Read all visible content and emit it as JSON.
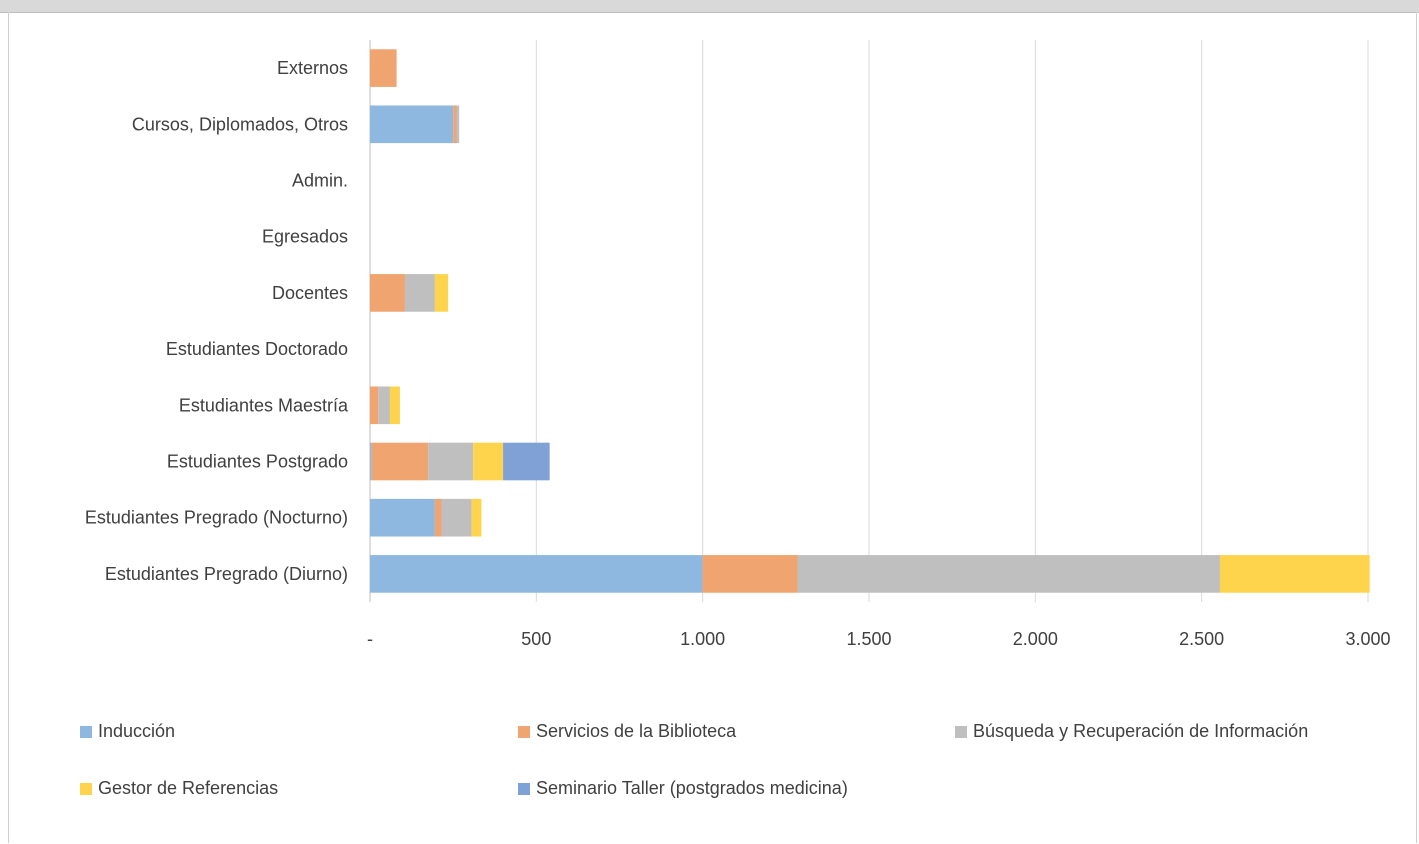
{
  "chart_data": {
    "type": "bar",
    "orientation": "horizontal",
    "stacked": true,
    "categories": [
      "Estudiantes Pregrado (Diurno)",
      "Estudiantes Pregrado (Nocturno)",
      "Estudiantes Postgrado",
      "Estudiantes Maestría",
      "Estudiantes Doctorado",
      "Docentes",
      "Egresados",
      "Admin.",
      "Cursos, Diplomados, Otros",
      "Externos"
    ],
    "series": [
      {
        "name": "Inducción",
        "color": "#8fb8e0",
        "values": [
          1000,
          195,
          5,
          0,
          0,
          0,
          0,
          0,
          250,
          0
        ]
      },
      {
        "name": "Servicios de la Biblioteca",
        "color": "#f0a46f",
        "values": [
          285,
          20,
          170,
          25,
          0,
          105,
          0,
          0,
          10,
          80
        ]
      },
      {
        "name": "Búsqueda y Recuperación de Información",
        "color": "#bfbfbf",
        "values": [
          1270,
          90,
          135,
          35,
          0,
          90,
          0,
          0,
          8,
          0
        ]
      },
      {
        "name": "Gestor de Referencias",
        "color": "#ffd44d",
        "values": [
          450,
          30,
          90,
          30,
          0,
          40,
          0,
          0,
          0,
          0
        ]
      },
      {
        "name": "Seminario Taller (postgrados medicina)",
        "color": "#7fa1d6",
        "values": [
          0,
          0,
          140,
          0,
          0,
          0,
          0,
          0,
          0,
          0
        ]
      }
    ],
    "xticks": [
      0,
      500,
      1000,
      1500,
      2000,
      2500,
      3000
    ],
    "xtick_labels": [
      "-",
      "500",
      "1.000",
      "1.500",
      "2.000",
      "2.500",
      "3.000"
    ],
    "xlim": [
      0,
      3000
    ],
    "grid": "vertical",
    "legend_position": "bottom"
  }
}
